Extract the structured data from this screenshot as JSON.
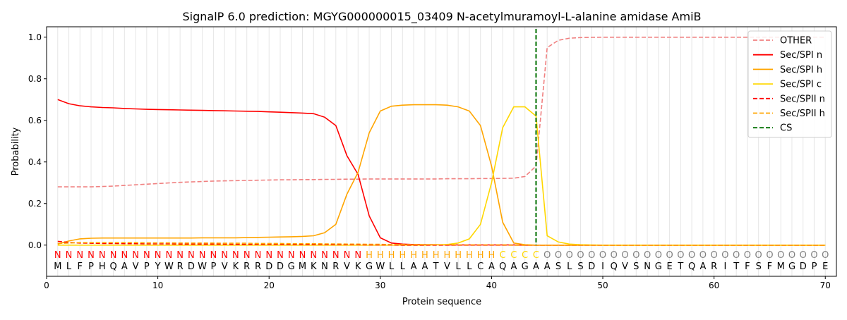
{
  "chart_data": {
    "type": "line",
    "title": "SignalP 6.0 prediction: MGYG000000015_03409 N-acetylmuramoyl-L-alanine amidase AmiB",
    "xlabel": "Protein sequence",
    "ylabel": "Probability",
    "xlim": [
      0,
      71
    ],
    "ylim": [
      -0.15,
      1.05
    ],
    "xticks": [
      0,
      10,
      20,
      30,
      40,
      50,
      60,
      70
    ],
    "yticks": [
      "0.0",
      "0.2",
      "0.4",
      "0.6",
      "0.8",
      "1.0"
    ],
    "sequence": "MLFPHQAVPYWRDWPVKRRDDGMKNRVKGWLLAATVLLCAQAGAASLSDIQVSNGETQARITFSFMGDPE",
    "labels": "NNNNNNNNNNNNNNNNNNNNNNNNNNNNHHHHHHHHHHHHCCCCOOOOOOOOOOOOOOOOOOOOOOOOOO",
    "label_colors": {
      "N": "#ff0000",
      "H": "#ffa500",
      "C": "#ffd700",
      "O": "#808080"
    },
    "legend_position": "top-right",
    "cs_position": 44,
    "series": [
      {
        "name": "OTHER",
        "color": "#f08080",
        "dash": true,
        "values": [
          0.28,
          0.28,
          0.28,
          0.28,
          0.282,
          0.284,
          0.287,
          0.29,
          0.293,
          0.296,
          0.299,
          0.302,
          0.304,
          0.306,
          0.308,
          0.309,
          0.31,
          0.311,
          0.312,
          0.313,
          0.314,
          0.314,
          0.315,
          0.315,
          0.316,
          0.316,
          0.317,
          0.317,
          0.318,
          0.318,
          0.318,
          0.318,
          0.318,
          0.318,
          0.318,
          0.319,
          0.319,
          0.319,
          0.32,
          0.32,
          0.321,
          0.322,
          0.33,
          0.38,
          0.95,
          0.985,
          0.995,
          0.998,
          0.999,
          1,
          1,
          1,
          1,
          1,
          1,
          1,
          1,
          1,
          1,
          1,
          1,
          1,
          1,
          1,
          1,
          1,
          1,
          1,
          1,
          1
        ]
      },
      {
        "name": "Sec/SPI n",
        "color": "#ff0000",
        "dash": false,
        "values": [
          0.7,
          0.68,
          0.67,
          0.665,
          0.662,
          0.66,
          0.657,
          0.655,
          0.653,
          0.652,
          0.651,
          0.65,
          0.649,
          0.648,
          0.647,
          0.646,
          0.645,
          0.644,
          0.643,
          0.641,
          0.639,
          0.637,
          0.635,
          0.632,
          0.615,
          0.575,
          0.43,
          0.34,
          0.14,
          0.035,
          0.01,
          0.005,
          0.003,
          0.002,
          0.002,
          0.001,
          0.001,
          0.001,
          0.001,
          0.001,
          0.001,
          0.001,
          0,
          0,
          0,
          0,
          0,
          0,
          0,
          0,
          0,
          0,
          0,
          0,
          0,
          0,
          0,
          0,
          0,
          0,
          0,
          0,
          0,
          0,
          0,
          0,
          0,
          0,
          0,
          0
        ]
      },
      {
        "name": "Sec/SPI h",
        "color": "#ffa500",
        "dash": false,
        "values": [
          0.005,
          0.02,
          0.03,
          0.033,
          0.034,
          0.034,
          0.034,
          0.034,
          0.034,
          0.034,
          0.034,
          0.034,
          0.034,
          0.035,
          0.035,
          0.035,
          0.035,
          0.036,
          0.037,
          0.038,
          0.039,
          0.04,
          0.042,
          0.045,
          0.06,
          0.1,
          0.245,
          0.35,
          0.54,
          0.645,
          0.668,
          0.673,
          0.675,
          0.675,
          0.675,
          0.673,
          0.665,
          0.645,
          0.575,
          0.38,
          0.11,
          0.01,
          0.002,
          0,
          0,
          0,
          0,
          0,
          0,
          0,
          0,
          0,
          0,
          0,
          0,
          0,
          0,
          0,
          0,
          0,
          0,
          0,
          0,
          0,
          0,
          0,
          0,
          0,
          0,
          0
        ]
      },
      {
        "name": "Sec/SPI c",
        "color": "#ffd700",
        "dash": false,
        "values": [
          0,
          0,
          0,
          0,
          0,
          0,
          0,
          0,
          0,
          0,
          0,
          0,
          0,
          0,
          0,
          0,
          0,
          0,
          0,
          0,
          0,
          0,
          0,
          0,
          0,
          0,
          0,
          0,
          0,
          0,
          0,
          0,
          0,
          0,
          0.001,
          0.003,
          0.01,
          0.03,
          0.1,
          0.3,
          0.565,
          0.665,
          0.665,
          0.62,
          0.045,
          0.015,
          0.005,
          0.002,
          0.001,
          0,
          0,
          0,
          0,
          0,
          0,
          0,
          0,
          0,
          0,
          0,
          0,
          0,
          0,
          0,
          0,
          0,
          0,
          0,
          0,
          0
        ]
      },
      {
        "name": "Sec/SPII n",
        "color": "#ff0000",
        "dash": true,
        "values": [
          0.018,
          0.013,
          0.01,
          0.009,
          0.008,
          0.008,
          0.007,
          0.007,
          0.006,
          0.006,
          0.006,
          0.005,
          0.005,
          0.005,
          0.005,
          0.005,
          0.004,
          0.004,
          0.004,
          0.004,
          0.004,
          0.003,
          0.003,
          0.003,
          0.003,
          0.002,
          0.002,
          0.002,
          0.001,
          0.001,
          0.001,
          0,
          0,
          0,
          0,
          0,
          0,
          0,
          0,
          0,
          0,
          0,
          0,
          0,
          0,
          0,
          0,
          0,
          0,
          0,
          0,
          0,
          0,
          0,
          0,
          0,
          0,
          0,
          0,
          0,
          0,
          0,
          0,
          0,
          0,
          0,
          0,
          0,
          0,
          0
        ]
      },
      {
        "name": "Sec/SPII h",
        "color": "#ffa500",
        "dash": true,
        "values": [
          0.008,
          0.01,
          0.012,
          0.012,
          0.012,
          0.012,
          0.012,
          0.012,
          0.011,
          0.011,
          0.011,
          0.01,
          0.01,
          0.01,
          0.01,
          0.009,
          0.009,
          0.009,
          0.008,
          0.008,
          0.008,
          0.007,
          0.007,
          0.007,
          0.006,
          0.006,
          0.005,
          0.005,
          0.004,
          0.004,
          0.003,
          0.003,
          0.002,
          0.002,
          0.002,
          0.002,
          0.001,
          0.001,
          0.001,
          0.001,
          0.001,
          0,
          0,
          0,
          0,
          0,
          0,
          0,
          0,
          0,
          0,
          0,
          0,
          0,
          0,
          0,
          0,
          0,
          0,
          0,
          0,
          0,
          0,
          0,
          0,
          0,
          0,
          0,
          0,
          0
        ]
      },
      {
        "name": "CS",
        "color": "#007000",
        "dash": true,
        "values": []
      }
    ]
  }
}
